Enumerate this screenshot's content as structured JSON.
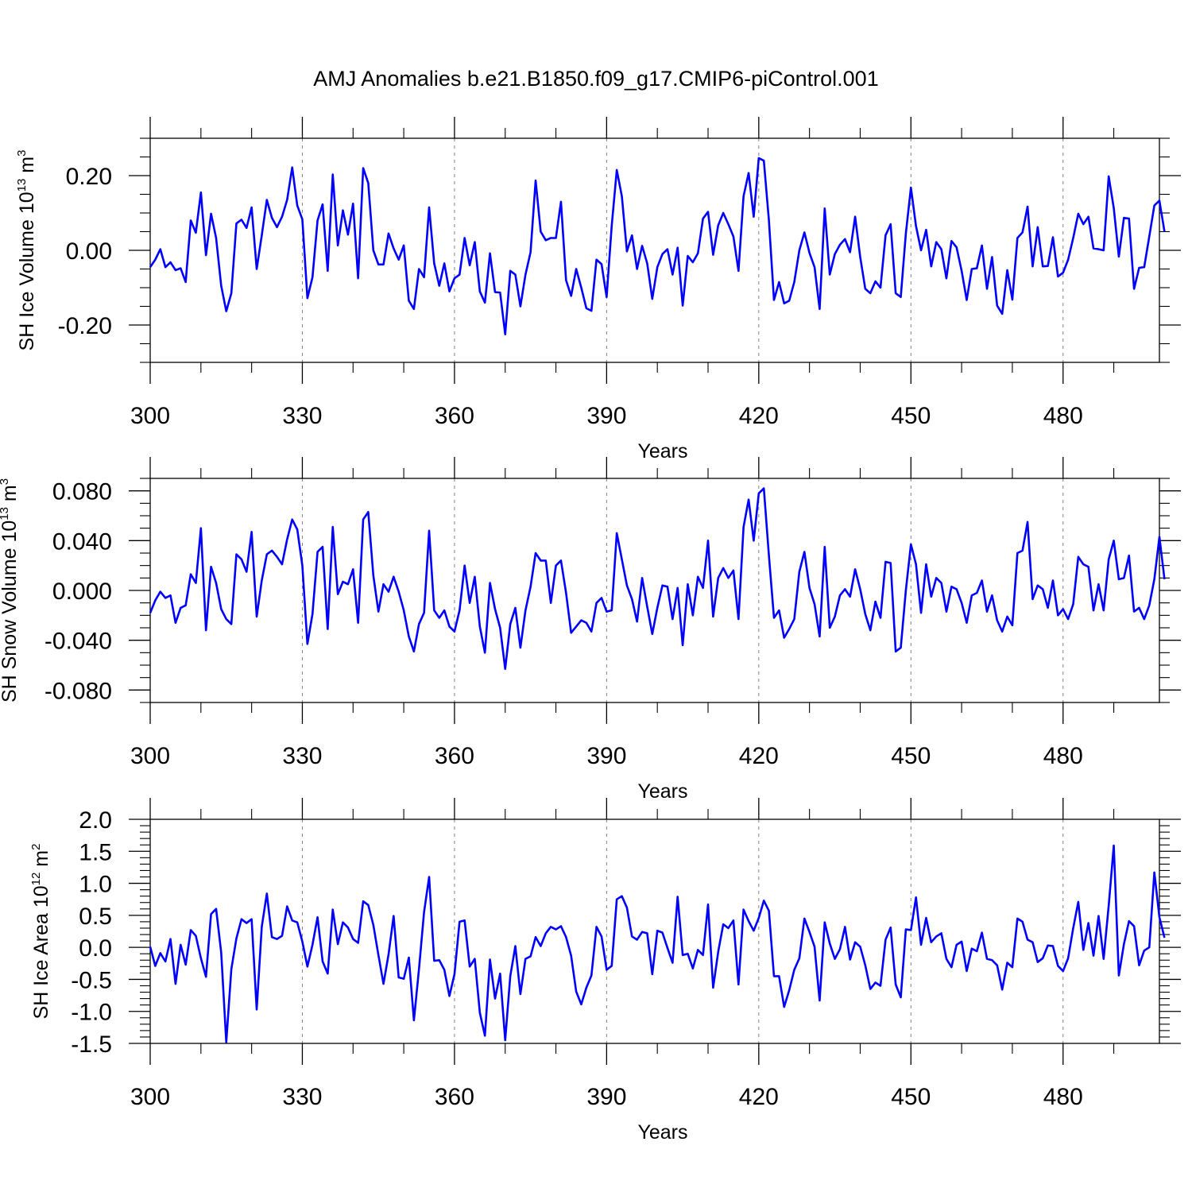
{
  "title": "AMJ Anomalies b.e21.B1850.f09_g17.CMIP6-piControl.001",
  "colors": {
    "line": "#0000ff",
    "axis": "#000000",
    "grid": "#808080",
    "background": "#ffffff"
  },
  "chart_data": [
    {
      "type": "line",
      "xlabel": "Years",
      "ylabel": "SH Ice Volume 10",
      "ylabel_exp": "13",
      "ylabel_unit": " m",
      "ylabel_unit_exp": "3",
      "xlim": [
        300,
        499
      ],
      "ylim": [
        -0.3,
        0.3
      ],
      "xticks": [
        300,
        330,
        360,
        390,
        420,
        450,
        480
      ],
      "xtick_labels": [
        "300",
        "330",
        "360",
        "390",
        "420",
        "450",
        "480"
      ],
      "yticks": [
        0.2,
        0.0,
        -0.2
      ],
      "ytick_labels": [
        "0.20",
        "0.00",
        "-0.20"
      ],
      "yminor_step": 0.05,
      "grid": "vertical dashed at x ticks",
      "x_start": 300,
      "series": [
        {
          "values": [
            -0.045,
            -0.025,
            0.003,
            -0.045,
            -0.032,
            -0.053,
            -0.048,
            -0.085,
            0.08,
            0.047,
            0.155,
            -0.013,
            0.098,
            0.033,
            -0.095,
            -0.163,
            -0.115,
            0.072,
            0.082,
            0.06,
            0.115,
            -0.05,
            0.04,
            0.135,
            0.087,
            0.062,
            0.09,
            0.135,
            0.222,
            0.12,
            0.083,
            -0.128,
            -0.072,
            0.08,
            0.123,
            -0.055,
            0.203,
            0.013,
            0.107,
            0.042,
            0.125,
            -0.075,
            0.22,
            0.18,
            0.0,
            -0.038,
            -0.038,
            0.045,
            0.005,
            -0.025,
            0.013,
            -0.135,
            -0.157,
            -0.05,
            -0.072,
            0.115,
            -0.035,
            -0.095,
            -0.035,
            -0.11,
            -0.075,
            -0.065,
            0.033,
            -0.04,
            0.022,
            -0.11,
            -0.14,
            -0.008,
            -0.112,
            -0.113,
            -0.225,
            -0.055,
            -0.065,
            -0.15,
            -0.065,
            -0.005,
            0.187,
            0.05,
            0.027,
            0.033,
            0.033,
            0.13,
            -0.08,
            -0.122,
            -0.05,
            -0.1,
            -0.155,
            -0.162,
            -0.025,
            -0.037,
            -0.125,
            0.065,
            0.215,
            0.145,
            -0.003,
            0.04,
            -0.05,
            0.012,
            -0.035,
            -0.13,
            -0.045,
            -0.01,
            0.003,
            -0.065,
            0.007,
            -0.148,
            -0.015,
            -0.032,
            -0.008,
            0.085,
            0.103,
            -0.012,
            0.067,
            0.1,
            0.07,
            0.037,
            -0.055,
            0.145,
            0.207,
            0.09,
            0.247,
            0.24,
            0.08,
            -0.133,
            -0.085,
            -0.142,
            -0.135,
            -0.085,
            0.0,
            0.048,
            -0.007,
            -0.045,
            -0.157,
            0.112,
            -0.065,
            -0.01,
            0.015,
            0.03,
            -0.005,
            0.09,
            -0.018,
            -0.103,
            -0.115,
            -0.083,
            -0.1,
            0.04,
            0.07,
            -0.115,
            -0.125,
            0.045,
            0.168,
            0.065,
            0.0,
            0.055,
            -0.043,
            0.022,
            0.003,
            -0.075,
            0.025,
            0.008,
            -0.055,
            -0.133,
            -0.05,
            -0.048,
            0.013,
            -0.103,
            -0.018,
            -0.148,
            -0.17,
            -0.053,
            -0.132,
            0.033,
            0.048,
            0.117,
            -0.043,
            0.062,
            -0.043,
            -0.042,
            0.035,
            -0.07,
            -0.06,
            -0.025,
            0.033,
            0.098,
            0.07,
            0.09,
            0.005,
            0.003,
            0.0,
            0.198,
            0.113,
            -0.017,
            0.087,
            0.085,
            -0.103,
            -0.047,
            -0.045,
            0.037,
            0.12,
            0.133,
            0.05
          ]
        }
      ]
    },
    {
      "type": "line",
      "xlabel": "Years",
      "ylabel": "SH Snow Volume 10",
      "ylabel_exp": "13",
      "ylabel_unit": " m",
      "ylabel_unit_exp": "3",
      "xlim": [
        300,
        499
      ],
      "ylim": [
        -0.09,
        0.09
      ],
      "xticks": [
        300,
        330,
        360,
        390,
        420,
        450,
        480
      ],
      "xtick_labels": [
        "300",
        "330",
        "360",
        "390",
        "420",
        "450",
        "480"
      ],
      "yticks": [
        0.08,
        0.04,
        0.0,
        -0.04,
        -0.08
      ],
      "ytick_labels": [
        "0.080",
        "0.040",
        "0.000",
        "-0.040",
        "-0.080"
      ],
      "yminor_step": 0.01,
      "grid": "vertical dashed at x ticks",
      "x_start": 300,
      "series": [
        {
          "values": [
            -0.018,
            -0.008,
            -0.001,
            -0.006,
            -0.004,
            -0.026,
            -0.014,
            -0.012,
            0.013,
            0.006,
            0.05,
            -0.032,
            0.019,
            0.006,
            -0.015,
            -0.023,
            -0.027,
            0.029,
            0.025,
            0.015,
            0.047,
            -0.021,
            0.008,
            0.029,
            0.032,
            0.027,
            0.021,
            0.041,
            0.057,
            0.049,
            0.02,
            -0.043,
            -0.019,
            0.031,
            0.035,
            -0.031,
            0.051,
            -0.003,
            0.007,
            0.005,
            0.017,
            -0.026,
            0.057,
            0.063,
            0.012,
            -0.017,
            0.005,
            -0.001,
            0.011,
            -0.001,
            -0.016,
            -0.037,
            -0.049,
            -0.027,
            -0.018,
            0.048,
            -0.016,
            -0.022,
            -0.016,
            -0.029,
            -0.033,
            -0.016,
            0.02,
            -0.01,
            0.011,
            -0.029,
            -0.05,
            0.006,
            -0.015,
            -0.03,
            -0.063,
            -0.027,
            -0.014,
            -0.046,
            -0.016,
            0.003,
            0.03,
            0.024,
            0.024,
            -0.01,
            0.02,
            0.024,
            -0.002,
            -0.034,
            -0.029,
            -0.024,
            -0.026,
            -0.033,
            -0.01,
            -0.006,
            -0.017,
            -0.016,
            0.046,
            0.025,
            0.004,
            -0.007,
            -0.025,
            0.01,
            -0.013,
            -0.035,
            -0.014,
            0.004,
            0.003,
            -0.023,
            0.002,
            -0.044,
            0.005,
            -0.02,
            0.011,
            0.002,
            0.04,
            -0.021,
            0.01,
            0.018,
            0.01,
            0.016,
            -0.023,
            0.051,
            0.073,
            0.04,
            0.078,
            0.082,
            0.028,
            -0.022,
            -0.016,
            -0.038,
            -0.031,
            -0.023,
            0.015,
            0.031,
            0.002,
            -0.011,
            -0.037,
            0.035,
            -0.03,
            -0.021,
            -0.004,
            0.001,
            -0.005,
            0.017,
            0.001,
            -0.019,
            -0.032,
            -0.009,
            -0.022,
            0.023,
            0.022,
            -0.049,
            -0.046,
            0.0,
            0.037,
            0.021,
            -0.018,
            0.021,
            -0.005,
            0.01,
            0.006,
            -0.017,
            0.003,
            0.001,
            -0.01,
            -0.026,
            -0.004,
            -0.002,
            0.008,
            -0.017,
            -0.004,
            -0.024,
            -0.033,
            -0.021,
            -0.028,
            0.03,
            0.032,
            0.055,
            -0.007,
            0.004,
            0.001,
            -0.014,
            0.008,
            -0.02,
            -0.015,
            -0.023,
            -0.011,
            0.027,
            0.021,
            0.019,
            -0.016,
            0.005,
            -0.016,
            0.025,
            0.04,
            0.009,
            0.01,
            0.028,
            -0.017,
            -0.014,
            -0.023,
            -0.012,
            0.009,
            0.043,
            0.009
          ]
        }
      ]
    },
    {
      "type": "line",
      "xlabel": "Years",
      "ylabel": "SH Ice Area 10",
      "ylabel_exp": "12",
      "ylabel_unit": " m",
      "ylabel_unit_exp": "2",
      "xlim": [
        300,
        499
      ],
      "ylim": [
        -1.5,
        2.0
      ],
      "xticks": [
        300,
        330,
        360,
        390,
        420,
        450,
        480
      ],
      "xtick_labels": [
        "300",
        "330",
        "360",
        "390",
        "420",
        "450",
        "480"
      ],
      "yticks": [
        2.0,
        1.5,
        1.0,
        0.5,
        0.0,
        -0.5,
        -1.0,
        -1.5
      ],
      "ytick_labels": [
        "2.0",
        "1.5",
        "1.0",
        "0.5",
        "0.0",
        "-0.5",
        "-1.0",
        "-1.5"
      ],
      "yminor_step": 0.1,
      "grid": "vertical dashed at x ticks",
      "x_start": 300,
      "series": [
        {
          "values": [
            0.01,
            -0.29,
            -0.09,
            -0.22,
            0.13,
            -0.57,
            0.04,
            -0.27,
            0.27,
            0.18,
            -0.17,
            -0.46,
            0.52,
            0.6,
            -0.08,
            -1.48,
            -0.34,
            0.14,
            0.44,
            0.38,
            0.44,
            -0.97,
            0.32,
            0.84,
            0.16,
            0.13,
            0.18,
            0.64,
            0.42,
            0.39,
            0.09,
            -0.3,
            0.04,
            0.47,
            -0.22,
            -0.41,
            0.59,
            0.05,
            0.39,
            0.31,
            0.13,
            0.07,
            0.72,
            0.66,
            0.35,
            -0.12,
            -0.57,
            -0.11,
            0.49,
            -0.47,
            -0.49,
            -0.16,
            -1.14,
            -0.34,
            0.55,
            1.1,
            -0.21,
            -0.2,
            -0.35,
            -0.76,
            -0.42,
            0.4,
            0.42,
            -0.3,
            -0.18,
            -1.02,
            -1.38,
            -0.19,
            -0.8,
            -0.41,
            -1.45,
            -0.45,
            0.02,
            -0.73,
            -0.18,
            -0.14,
            0.16,
            0.02,
            0.22,
            0.32,
            0.28,
            0.33,
            0.16,
            -0.13,
            -0.69,
            -0.89,
            -0.63,
            -0.44,
            0.32,
            0.17,
            -0.35,
            -0.29,
            0.75,
            0.8,
            0.62,
            0.17,
            0.12,
            0.24,
            0.22,
            -0.42,
            0.26,
            0.23,
            -0.01,
            -0.24,
            0.79,
            -0.12,
            -0.1,
            -0.33,
            -0.04,
            -0.12,
            0.67,
            -0.63,
            -0.07,
            0.36,
            0.3,
            0.42,
            -0.58,
            0.59,
            0.41,
            0.26,
            0.46,
            0.73,
            0.57,
            -0.45,
            -0.45,
            -0.93,
            -0.67,
            -0.35,
            -0.17,
            0.45,
            0.24,
            0.01,
            -0.83,
            0.39,
            0.06,
            -0.18,
            -0.03,
            0.32,
            -0.19,
            0.08,
            0.01,
            -0.28,
            -0.65,
            -0.55,
            -0.6,
            0.12,
            0.31,
            -0.58,
            -0.78,
            0.28,
            0.27,
            0.78,
            0.04,
            0.46,
            0.08,
            0.17,
            0.22,
            -0.18,
            -0.31,
            0.04,
            0.09,
            -0.37,
            -0.02,
            -0.06,
            0.23,
            -0.18,
            -0.2,
            -0.28,
            -0.66,
            -0.24,
            -0.31,
            0.45,
            0.4,
            0.12,
            0.08,
            -0.23,
            -0.17,
            0.03,
            0.02,
            -0.29,
            -0.37,
            -0.17,
            0.3,
            0.71,
            -0.04,
            0.38,
            -0.13,
            0.49,
            -0.18,
            0.65,
            1.59,
            -0.44,
            0.05,
            0.41,
            0.33,
            -0.28,
            -0.05,
            0.0,
            1.17,
            0.47,
            0.15
          ]
        }
      ]
    }
  ]
}
